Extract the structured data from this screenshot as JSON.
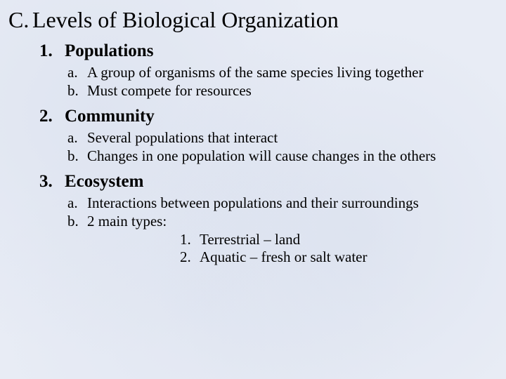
{
  "title_fontsize": 32,
  "heading_fontsize": 25,
  "body_fontsize": 21,
  "background_color": "#e8ecf5",
  "text_color": "#000000",
  "font_family": "Times New Roman",
  "main": {
    "marker": "C.",
    "title": "Levels of Biological Organization"
  },
  "items": [
    {
      "marker": "1.",
      "title": "Populations",
      "subs": [
        {
          "marker": "a.",
          "text": "A group of organisms of the same species living together"
        },
        {
          "marker": "b.",
          "text": "Must compete for resources"
        }
      ]
    },
    {
      "marker": "2.",
      "title": "Community",
      "subs": [
        {
          "marker": "a.",
          "text": "Several populations that interact"
        },
        {
          "marker": "b.",
          "text": "Changes in one population will cause changes in the others"
        }
      ]
    },
    {
      "marker": "3.",
      "title": "Ecosystem",
      "subs": [
        {
          "marker": "a.",
          "text": "Interactions between populations and their surroundings"
        },
        {
          "marker": "b.",
          "text": "2 main types:"
        }
      ],
      "nested": [
        {
          "marker": "1.",
          "text": "Terrestrial – land"
        },
        {
          "marker": "2.",
          "text": "Aquatic – fresh or salt water"
        }
      ]
    }
  ]
}
